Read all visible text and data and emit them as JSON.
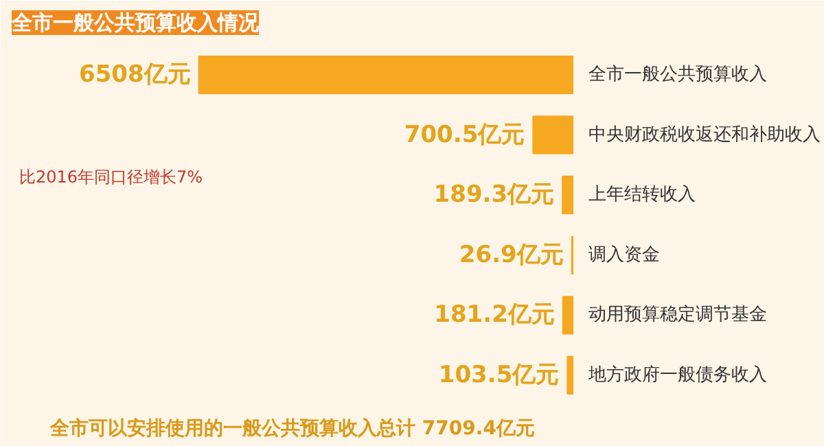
{
  "chart_data": {
    "type": "bar",
    "orientation": "horizontal",
    "title": "全市一般公共预算收入情况",
    "categories": [
      "全市一般公共预算收入",
      "中央财政税收返还和补助收入",
      "上年结转收入",
      "调入资金",
      "动用预算稳定调节基金",
      "地方政府一般债务收入"
    ],
    "values": [
      6508,
      700.5,
      189.3,
      26.9,
      181.2,
      103.5
    ],
    "value_labels": [
      "6508亿元",
      "700.5亿元",
      "189.3亿元",
      "26.9亿元",
      "181.2亿元",
      "103.5亿元"
    ],
    "color": "#f5a820",
    "annotations": [
      "比2016年同口径增长7%",
      "全市可以安排使用的一般公共预算收入总计 7709.4亿元"
    ]
  }
}
